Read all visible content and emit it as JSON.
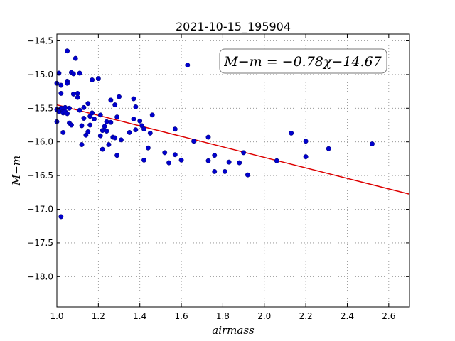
{
  "chart_data": {
    "type": "scatter",
    "title": "2021-10-15_195904",
    "xlabel": "airmass",
    "ylabel": "M−m",
    "xlim": [
      1.0,
      2.7
    ],
    "ylim": [
      -14.4,
      -18.45
    ],
    "y_inverted": true,
    "grid": true,
    "x_ticks": [
      1.0,
      1.2,
      1.4,
      1.6,
      1.8,
      2.0,
      2.2,
      2.4,
      2.6
    ],
    "x_tick_labels": [
      "1.0",
      "1.2",
      "1.4",
      "1.6",
      "1.8",
      "2.0",
      "2.2",
      "2.4",
      "2.6"
    ],
    "y_ticks": [
      -14.5,
      -15.0,
      -15.5,
      -16.0,
      -16.5,
      -17.0,
      -17.5,
      -18.0
    ],
    "y_tick_labels": [
      "−14.5",
      "−15.0",
      "−15.5",
      "−16.0",
      "−16.5",
      "−17.0",
      "−17.5",
      "−18.0"
    ],
    "annotation": "M−m = −0.78χ−14.67",
    "fit": {
      "slope": -0.78,
      "intercept": -14.67,
      "color": "#dd0000"
    },
    "marker_color": "#0000cc",
    "points": [
      [
        1.0,
        -15.13
      ],
      [
        1.0,
        -15.52
      ],
      [
        1.0,
        -15.7
      ],
      [
        1.01,
        -14.98
      ],
      [
        1.01,
        -15.55
      ],
      [
        1.02,
        -15.16
      ],
      [
        1.02,
        -15.28
      ],
      [
        1.02,
        -15.5
      ],
      [
        1.02,
        -17.11
      ],
      [
        1.03,
        -15.55
      ],
      [
        1.03,
        -15.57
      ],
      [
        1.03,
        -15.86
      ],
      [
        1.04,
        -15.49
      ],
      [
        1.04,
        -15.55
      ],
      [
        1.05,
        -14.65
      ],
      [
        1.05,
        -15.1
      ],
      [
        1.05,
        -15.13
      ],
      [
        1.05,
        -15.58
      ],
      [
        1.06,
        -15.5
      ],
      [
        1.06,
        -15.72
      ],
      [
        1.07,
        -14.97
      ],
      [
        1.07,
        -15.75
      ],
      [
        1.08,
        -14.99
      ],
      [
        1.08,
        -15.29
      ],
      [
        1.09,
        -14.76
      ],
      [
        1.1,
        -15.28
      ],
      [
        1.1,
        -15.34
      ],
      [
        1.11,
        -14.98
      ],
      [
        1.11,
        -15.53
      ],
      [
        1.12,
        -15.76
      ],
      [
        1.12,
        -16.04
      ],
      [
        1.13,
        -15.49
      ],
      [
        1.13,
        -15.65
      ],
      [
        1.14,
        -15.9
      ],
      [
        1.15,
        -15.43
      ],
      [
        1.15,
        -15.85
      ],
      [
        1.16,
        -15.62
      ],
      [
        1.16,
        -15.75
      ],
      [
        1.17,
        -15.08
      ],
      [
        1.17,
        -15.57
      ],
      [
        1.18,
        -15.66
      ],
      [
        1.2,
        -15.06
      ],
      [
        1.21,
        -15.6
      ],
      [
        1.21,
        -15.91
      ],
      [
        1.22,
        -15.83
      ],
      [
        1.22,
        -16.11
      ],
      [
        1.23,
        -15.77
      ],
      [
        1.24,
        -15.7
      ],
      [
        1.24,
        -15.84
      ],
      [
        1.25,
        -16.04
      ],
      [
        1.26,
        -15.38
      ],
      [
        1.26,
        -15.71
      ],
      [
        1.27,
        -15.93
      ],
      [
        1.28,
        -15.45
      ],
      [
        1.28,
        -15.94
      ],
      [
        1.29,
        -15.63
      ],
      [
        1.29,
        -16.2
      ],
      [
        1.3,
        -15.33
      ],
      [
        1.31,
        -15.97
      ],
      [
        1.35,
        -15.86
      ],
      [
        1.37,
        -15.36
      ],
      [
        1.37,
        -15.66
      ],
      [
        1.38,
        -15.48
      ],
      [
        1.38,
        -15.82
      ],
      [
        1.4,
        -15.69
      ],
      [
        1.41,
        -15.76
      ],
      [
        1.42,
        -16.27
      ],
      [
        1.42,
        -15.81
      ],
      [
        1.44,
        -16.09
      ],
      [
        1.45,
        -15.87
      ],
      [
        1.46,
        -15.6
      ],
      [
        1.52,
        -16.16
      ],
      [
        1.54,
        -16.31
      ],
      [
        1.57,
        -15.81
      ],
      [
        1.57,
        -16.19
      ],
      [
        1.6,
        -16.27
      ],
      [
        1.63,
        -14.86
      ],
      [
        1.66,
        -15.99
      ],
      [
        1.73,
        -15.93
      ],
      [
        1.73,
        -16.28
      ],
      [
        1.76,
        -16.2
      ],
      [
        1.76,
        -16.44
      ],
      [
        1.81,
        -16.44
      ],
      [
        1.83,
        -16.3
      ],
      [
        1.88,
        -16.31
      ],
      [
        1.9,
        -16.16
      ],
      [
        1.92,
        -16.49
      ],
      [
        2.06,
        -16.28
      ],
      [
        2.13,
        -15.87
      ],
      [
        2.2,
        -15.99
      ],
      [
        2.2,
        -16.22
      ],
      [
        2.31,
        -16.1
      ],
      [
        2.52,
        -16.03
      ]
    ]
  }
}
